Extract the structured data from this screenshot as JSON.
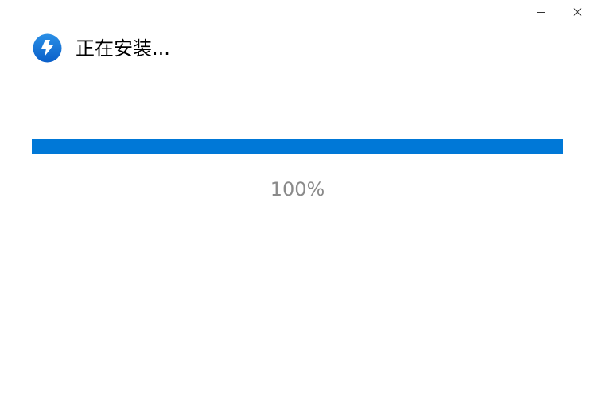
{
  "window": {
    "minimize_icon": "minimize-icon",
    "close_icon": "close-icon"
  },
  "header": {
    "title": "正在安装...",
    "logo_icon": "lightning-logo-icon"
  },
  "progress": {
    "value_percent": 100,
    "label": "100%",
    "color": "#0078d7"
  }
}
